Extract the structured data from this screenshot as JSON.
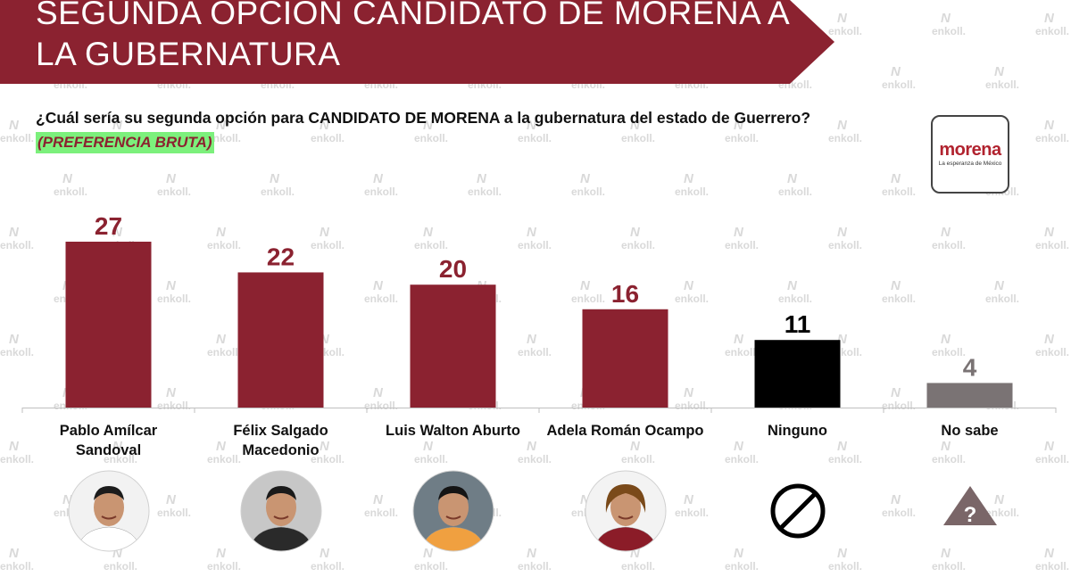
{
  "header": {
    "title": "SEGUNDA OPCIÓN CANDIDATO DE MORENA A LA GUBERNATURA",
    "question": "¿Cuál sería su segunda opción para CANDIDATO DE MORENA a la gubernatura del estado de Guerrero?",
    "subtitle": "(PREFERENCIA BRUTA)"
  },
  "logo": {
    "name": "morena",
    "slogan": "La esperanza de México"
  },
  "watermark": {
    "text": "enkoll"
  },
  "colors": {
    "banner": "#8b2230",
    "candidate_bar": "#8b2230",
    "ninguno_bar": "#000000",
    "nosabe_bar": "#7a7374",
    "highlight": "#7cf07c"
  },
  "chart_data": {
    "type": "bar",
    "categories": [
      "Pablo Amílcar Sandoval",
      "Félix Salgado Macedonio",
      "Luis Walton Aburto",
      "Adela Román Ocampo",
      "Ninguno",
      "No sabe"
    ],
    "values": [
      27,
      22,
      20,
      16,
      11,
      4
    ],
    "bar_colors": [
      "#8b2230",
      "#8b2230",
      "#8b2230",
      "#8b2230",
      "#000000",
      "#7a7374"
    ],
    "label_colors": [
      "#8b2230",
      "#8b2230",
      "#8b2230",
      "#8b2230",
      "#000000",
      "#7a7374"
    ],
    "icons": [
      "photo-pablo-amilcar",
      "photo-felix-salgado",
      "photo-luis-walton",
      "photo-adela-roman",
      "prohibited-icon",
      "question-triangle-icon"
    ],
    "ylim": [
      0,
      27
    ],
    "title": "",
    "xlabel": "",
    "ylabel": ""
  }
}
